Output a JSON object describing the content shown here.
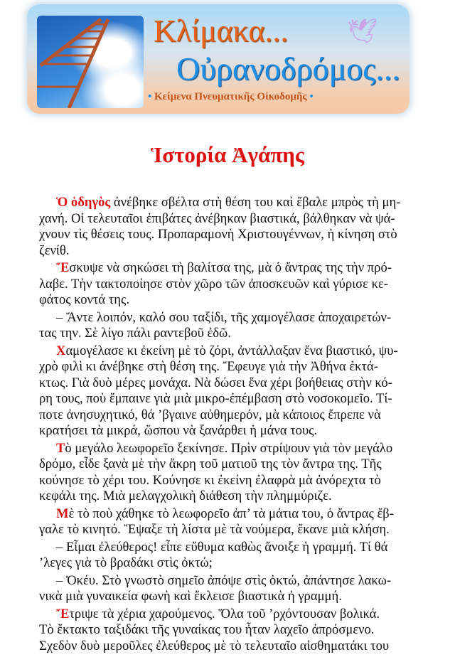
{
  "banner": {
    "title1": "Κλίμακα...",
    "title2": "Οὐρανοδρόμος...",
    "subtitle": "Κείμενα Πνευματικῆς Οἰκοδομῆς",
    "bullet": "•",
    "icons": [
      "ladder-sky-image",
      "dove-icon"
    ]
  },
  "title": "Ἱστορία Ἀγάπης",
  "accent_color": "#dd1111",
  "paragraphs": [
    {
      "lead": "Ὁ ὁδηγὸς",
      "lines": [
        " ἀνέβηκε σβέλτα στὴ θέση του καὶ ἔβαλε μπρὸς τὴ μη-",
        "χανή. Οἱ τελευταῖοι ἐπιβάτες ἀνέβηκαν βιαστικά, βάλθηκαν νὰ ψά-",
        "χνουν τὶς θέσεις τους. Προπαραμονὴ Χριστουγέννων, ἡ κίνηση στὸ",
        "ζενίθ."
      ]
    },
    {
      "lead": "Ἔ",
      "lines": [
        "σκυψε νὰ σηκώσει τὴ βαλίτσα της, μὰ ὁ ἄντρας της τὴν πρό-",
        "λαβε. Τὴν τακτοποίησε στὸν χῶρο τῶν ἀποσκευῶν καὶ γύρισε κε-",
        "φάτος κοντά της."
      ]
    },
    {
      "lead": "",
      "lines": [
        "– Ἄντε λοιπόν, καλό σου ταξίδι, τῆς χαμογέλασε ἀποχαιρετών-",
        "τας την. Σὲ λίγο πάλι ραντεβοῦ ἐδῶ."
      ]
    },
    {
      "lead": "Χ",
      "lines": [
        "αμογέλασε κι ἐκείνη μὲ τὸ ζόρι, ἀντάλλαξαν ἕνα βιαστικό, ψυ-",
        "χρὸ φιλὶ κι ἀνέβηκε στὴ θέση της. Ἔφευγε γιὰ τὴν Ἀθήνα ἐκτά-",
        "κτως. Γιὰ δυὸ μέρες μονάχα. Νὰ δώσει ἕνα χέρι βοήθειας στὴν κό-",
        "ρη τους, ποὺ ἔμπαινε γιὰ μιὰ μικρο-ἐπέμβαση στὸ νοσοκομεῖο. Τί-",
        "ποτε ἀνησυχητικό, θά ’βγαινε αὐθημερόν, μὰ κάποιος ἔπρεπε νὰ",
        "κρατήσει τὰ μικρά, ὥσπου νὰ ξανάρθει ἡ μάνα τους."
      ]
    },
    {
      "lead": "Τ",
      "lines": [
        "ὸ μεγάλο λεωφορεῖο ξεκίνησε. Πρὶν στρίψουν γιὰ τὸν μεγάλο",
        "δρόμο, εἶδε ξανὰ μὲ τὴν ἄκρη τοῦ ματιοῦ της τὸν ἄντρα της. Τῆς",
        "κούνησε τὸ χέρι του. Κούνησε κι ἐκείνη ἐλαφρὰ μὰ ἀνόρεχτα τὸ",
        "κεφάλι της. Μιὰ μελαγχολικὴ διάθεση τὴν πλημμύριζε."
      ]
    },
    {
      "lead": "Μ",
      "lines": [
        "ὲ τὸ ποὺ χάθηκε τὸ λεωφορεῖο ἀπ’ τὰ μάτια του, ὁ ἄντρας ἔβ-",
        "γαλε τὸ κινητό. Ἔψαξε τὴ λίστα μὲ τὰ νούμερα, ἔκανε μιὰ κλήση."
      ]
    },
    {
      "lead": "",
      "lines": [
        "– Εἶμαι ἐλεύθερος! εἶπε εὔθυμα καθὼς ἄνοιξε ἡ γραμμή. Τί θά",
        "’λεγες γιὰ τὸ βραδάκι στὶς ὀκτώ;"
      ]
    },
    {
      "lead": "",
      "lines": [
        "– Ὀκέυ. Στὸ γνωστὸ σημεῖο ἀπόψε στὶς ὀκτώ, ἀπάντησε λακω-",
        "νικὰ μιὰ γυναικεία φωνὴ καὶ ἔκλεισε βιαστικὰ ἡ γραμμή."
      ]
    },
    {
      "lead": "Ἔ",
      "lines": [
        "τριψε τὰ χέρια χαρούμενος. Ὅλα τοῦ ’ρχόντουσαν βολικά.",
        "Τὸ ἔκτακτο ταξιδάκι τῆς γυναίκας του ἦταν λαχεῖο ἀπρόσμενο.",
        "Σχεδὸν δυὸ μεροῦλες ἐλεύθερος μὲ τὸ τελευταῖο αἰσθηματάκι του"
      ]
    }
  ]
}
